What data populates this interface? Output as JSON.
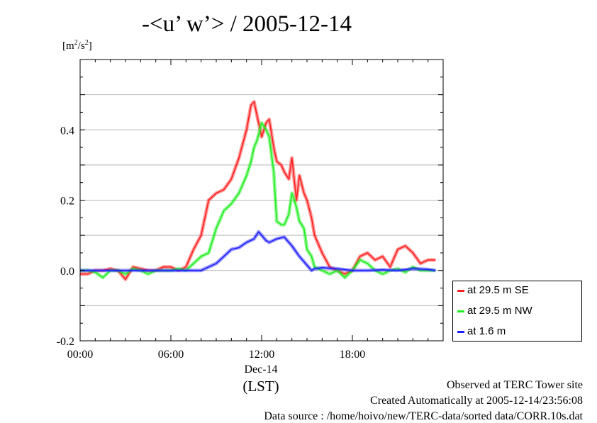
{
  "header": {
    "title": "-<u’ w’> / 2005-12-14",
    "unit": "[m",
    "unit_sup1": "2",
    "unit_mid": "/s",
    "unit_sup2": "2",
    "unit_end": "]"
  },
  "footer": {
    "line1": "Observed at TERC Tower site",
    "line2": "Created Automatically at 2005-12-14/23:56:08",
    "line3": "Data source : /home/hoivo/new/TERC-data/sorted  data/CORR.10s.dat"
  },
  "chart_data": {
    "type": "line",
    "title": "-<u’ w’> / 2005-12-14",
    "xlabel": "(LST)",
    "ylabel": "[m2/s2]",
    "x_date_label": "Dec-14",
    "xlim": [
      0,
      24
    ],
    "ylim": [
      -0.2,
      0.6
    ],
    "x_ticks": [
      0,
      6,
      12,
      18
    ],
    "x_tick_labels": [
      "00:00",
      "06:00",
      "12:00",
      "18:00"
    ],
    "y_ticks": [
      -0.2,
      0.0,
      0.2,
      0.4
    ],
    "y_tick_labels": [
      "-0.2",
      "0.0",
      "0.2",
      "0.4"
    ],
    "grid": true,
    "legend_position": "bottom-right outside",
    "series": [
      {
        "name": "at 29.5 m SE",
        "color": "#ff2020",
        "x": [
          0,
          0.5,
          1,
          1.5,
          2,
          2.5,
          3,
          3.5,
          4,
          4.5,
          5,
          5.5,
          6,
          6.5,
          7,
          7.5,
          8,
          8.5,
          9,
          9.5,
          10,
          10.5,
          11,
          11.3,
          11.5,
          11.7,
          12,
          12.3,
          12.5,
          12.8,
          13,
          13.3,
          13.5,
          13.8,
          14,
          14.3,
          14.5,
          14.8,
          15,
          15.3,
          15.5,
          16,
          16.5,
          17,
          17.5,
          18,
          18.5,
          19,
          19.5,
          20,
          20.5,
          21,
          21.5,
          22,
          22.5,
          23,
          23.5
        ],
        "y": [
          -0.01,
          -0.01,
          0.0,
          0.0,
          0.005,
          0.0,
          -0.025,
          0.01,
          0.005,
          0.0,
          0.0,
          0.01,
          0.01,
          0.0,
          0.01,
          0.06,
          0.1,
          0.2,
          0.22,
          0.23,
          0.26,
          0.32,
          0.4,
          0.47,
          0.48,
          0.44,
          0.38,
          0.42,
          0.43,
          0.35,
          0.31,
          0.3,
          0.28,
          0.26,
          0.32,
          0.2,
          0.27,
          0.22,
          0.2,
          0.15,
          0.1,
          0.05,
          0.01,
          0.0,
          -0.01,
          0.0,
          0.04,
          0.05,
          0.03,
          0.04,
          0.01,
          0.06,
          0.07,
          0.05,
          0.02,
          0.03,
          0.03
        ]
      },
      {
        "name": "at 29.5 m NW",
        "color": "#20ee20",
        "x": [
          0,
          0.5,
          1,
          1.5,
          2,
          2.5,
          3,
          3.5,
          4,
          4.5,
          5,
          5.5,
          6,
          6.5,
          7,
          7.5,
          8,
          8.5,
          9,
          9.5,
          10,
          10.5,
          11,
          11.3,
          11.5,
          11.7,
          12,
          12.3,
          12.5,
          12.8,
          13,
          13.3,
          13.5,
          13.8,
          14,
          14.3,
          14.5,
          14.8,
          15,
          15.3,
          15.5,
          16,
          16.5,
          17,
          17.5,
          18,
          18.5,
          19,
          19.5,
          20,
          20.5,
          21,
          21.5,
          22,
          22.5,
          23,
          23.5
        ],
        "y": [
          0.0,
          0.0,
          -0.005,
          -0.02,
          0.0,
          0.0,
          -0.01,
          0.005,
          0.0,
          -0.01,
          0.0,
          0.0,
          0.0,
          0.005,
          0.0,
          0.02,
          0.04,
          0.05,
          0.12,
          0.17,
          0.19,
          0.22,
          0.27,
          0.31,
          0.35,
          0.37,
          0.42,
          0.4,
          0.38,
          0.28,
          0.14,
          0.13,
          0.13,
          0.16,
          0.22,
          0.18,
          0.14,
          0.12,
          0.06,
          0.04,
          0.01,
          0.0,
          -0.01,
          0.0,
          -0.02,
          0.0,
          0.03,
          0.02,
          0.0,
          -0.01,
          0.0,
          0.005,
          -0.005,
          0.01,
          0.0,
          0.0,
          0.0
        ]
      },
      {
        "name": "at 1.6 m",
        "color": "#2020ff",
        "x": [
          0,
          1,
          2,
          3,
          4,
          5,
          6,
          7,
          7.5,
          8,
          8.5,
          9,
          9.5,
          10,
          10.5,
          11,
          11.5,
          11.8,
          12,
          12.3,
          12.5,
          13,
          13.5,
          14,
          14.5,
          15,
          15.3,
          15.5,
          16,
          17,
          18,
          19,
          20,
          21,
          22,
          23,
          23.5
        ],
        "y": [
          0.0,
          0.0,
          0.0,
          0.0,
          0.0,
          0.0,
          0.0,
          0.0,
          0.0,
          0.0,
          0.01,
          0.02,
          0.04,
          0.06,
          0.065,
          0.08,
          0.09,
          0.11,
          0.1,
          0.085,
          0.08,
          0.09,
          0.095,
          0.07,
          0.04,
          0.015,
          0.0,
          0.005,
          0.008,
          0.005,
          0.0,
          0.0,
          0.002,
          0.0,
          0.005,
          0.003,
          0.0
        ]
      }
    ]
  }
}
